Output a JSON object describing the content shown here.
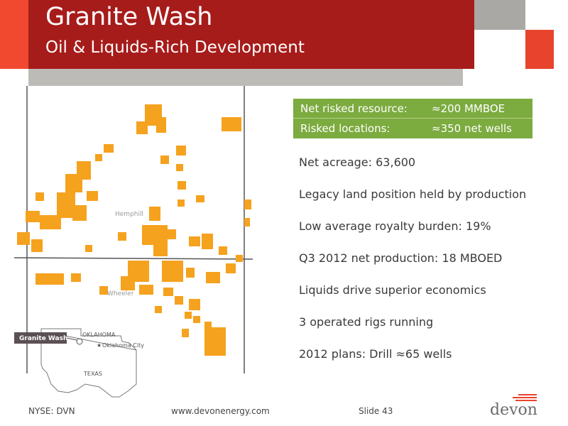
{
  "header": {
    "title": "Granite Wash",
    "subtitle": "Oil & Liquids-Rich Development"
  },
  "stats_box": {
    "rows": [
      {
        "label": "Net risked resource:",
        "value": "≈200 MMBOE"
      },
      {
        "label": "Risked locations:",
        "value": "≈350 net wells"
      }
    ]
  },
  "bullets": [
    "Net acreage: 63,600",
    "Legacy land position held by production",
    "Low average royalty burden: 19%",
    "Q3 2012 net production: 18 MBOED",
    "Liquids drive superior economics",
    "3 operated rigs running",
    "2012 plans: Drill ≈65 wells"
  ],
  "map": {
    "county_labels": {
      "hemphill": "Hemphill",
      "wheeler": "Wheeler"
    },
    "inset": {
      "tag": "Granite Wash",
      "state_oklahoma": "OKLAHOMA",
      "city": "Oklahoma City",
      "state_texas": "TEXAS"
    }
  },
  "footer": {
    "ticker": "NYSE: DVN",
    "website": "www.devonenergy.com",
    "slide": "Slide 43"
  },
  "logo": {
    "text": "devon"
  },
  "colors": {
    "header_red": "#a61c1a",
    "accent_orange": "#f0492f",
    "stats_green": "#7cab3f",
    "acreage_orange": "#f5a21f"
  }
}
